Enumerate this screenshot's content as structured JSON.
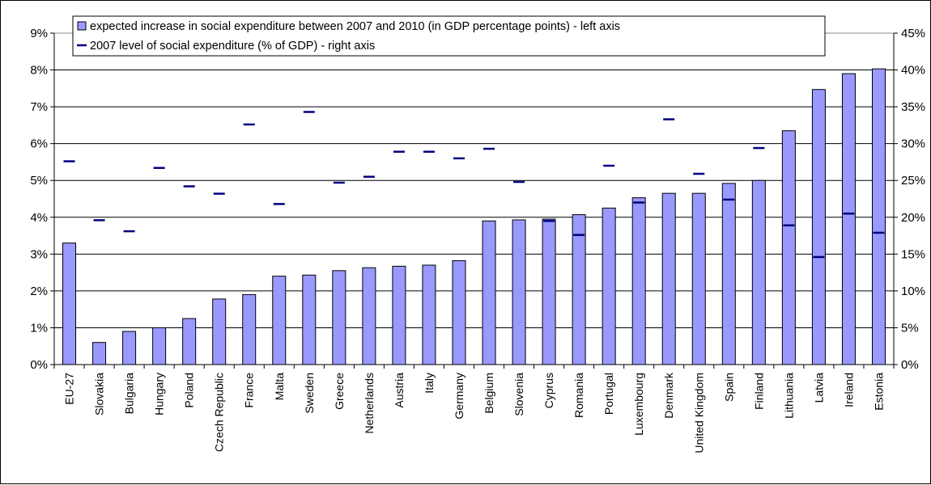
{
  "chart_data": {
    "type": "bar",
    "categories": [
      "EU-27",
      "Slovakia",
      "Bulgaria",
      "Hungary",
      "Poland",
      "Czech Republic",
      "France",
      "Malta",
      "Sweden",
      "Greece",
      "Netherlands",
      "Austria",
      "Italy",
      "Germany",
      "Belgium",
      "Slovenia",
      "Cyprus",
      "Romania",
      "Portugal",
      "Luxembourg",
      "Denmark",
      "United Kingdom",
      "Spain",
      "Finland",
      "Lithuania",
      "Latvia",
      "Ireland",
      "Estonia"
    ],
    "series": [
      {
        "name": "expected increase in social expenditure between 2007 and 2010 (in GDP percentage points) - left axis",
        "kind": "bar",
        "axis": "left",
        "color": "#9999ff",
        "values": [
          3.3,
          0.6,
          0.9,
          1.0,
          1.25,
          1.78,
          1.9,
          2.4,
          2.43,
          2.55,
          2.63,
          2.67,
          2.7,
          2.82,
          3.9,
          3.93,
          3.95,
          4.07,
          4.25,
          4.53,
          4.65,
          4.65,
          4.92,
          5.0,
          6.35,
          7.47,
          7.9,
          8.03
        ]
      },
      {
        "name": "2007 level of social expenditure (% of GDP) - right axis",
        "kind": "marker",
        "axis": "right",
        "color": "#000080",
        "values": [
          27.6,
          19.6,
          18.1,
          26.7,
          24.2,
          23.2,
          32.6,
          21.8,
          34.3,
          24.7,
          25.5,
          28.9,
          28.9,
          28.0,
          29.3,
          24.8,
          19.5,
          17.6,
          27.0,
          22.0,
          33.3,
          25.9,
          22.4,
          29.4,
          18.9,
          14.6,
          20.5,
          17.9
        ]
      }
    ],
    "ylim": [
      0,
      9
    ],
    "yticks": [
      "0%",
      "1%",
      "2%",
      "3%",
      "4%",
      "5%",
      "6%",
      "7%",
      "8%",
      "9%"
    ],
    "y2lim": [
      0,
      45
    ],
    "y2ticks": [
      "0%",
      "5%",
      "10%",
      "15%",
      "20%",
      "25%",
      "30%",
      "35%",
      "40%",
      "45%"
    ],
    "grid": true,
    "legend_position": "top",
    "title": "",
    "xlabel": "",
    "ylabel": ""
  }
}
